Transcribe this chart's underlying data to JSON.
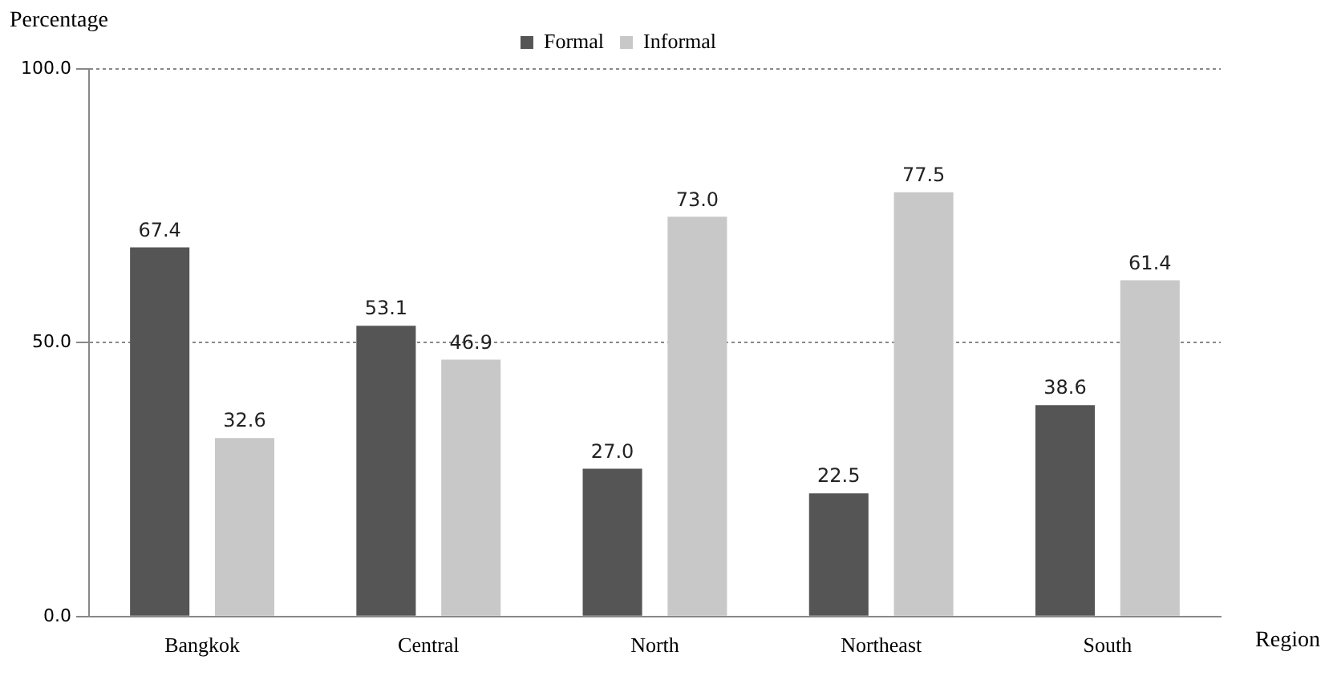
{
  "chart_data": {
    "type": "bar",
    "xlabel": "Region",
    "ylabel": "Percentage",
    "categories": [
      "Bangkok",
      "Central",
      "North",
      "Northeast",
      "South"
    ],
    "series": [
      {
        "name": "Formal",
        "color": "#555555",
        "values": [
          67.4,
          53.1,
          27.0,
          22.5,
          38.6
        ],
        "value_labels": [
          "67.4",
          "53.1",
          "27.0",
          "22.5",
          "38.6"
        ]
      },
      {
        "name": "Informal",
        "color": "#c8c8c8",
        "values": [
          32.6,
          46.9,
          73.0,
          77.5,
          61.4
        ],
        "value_labels": [
          "32.6",
          "46.9",
          "73.0",
          "77.5",
          "61.4"
        ]
      }
    ],
    "ylim": [
      0,
      100
    ],
    "yticks": [
      {
        "value": 0,
        "label": "0.0"
      },
      {
        "value": 50,
        "label": "50.0"
      },
      {
        "value": 100,
        "label": "100.0"
      }
    ],
    "grid": "y",
    "legend": "top"
  }
}
